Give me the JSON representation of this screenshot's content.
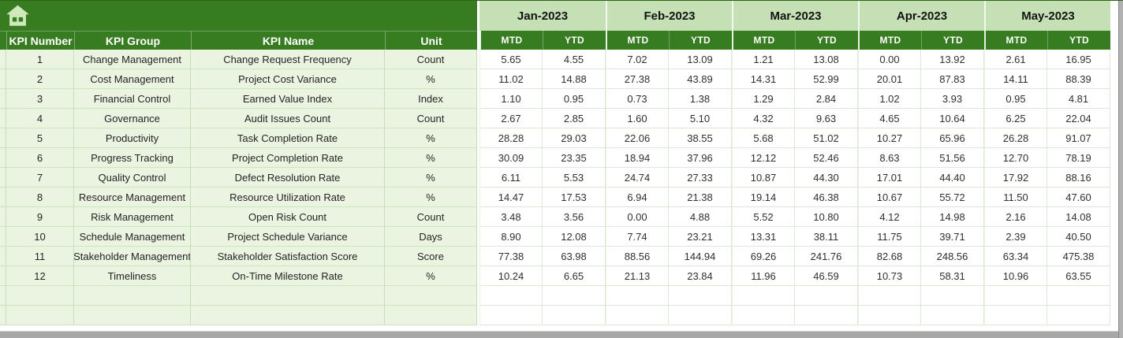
{
  "header": {
    "home_icon": "home-icon"
  },
  "colors": {
    "header_green": "#387c21",
    "month_band_green": "#c5e0b4",
    "label_cell_green": "#ebf4e1",
    "scrollbar_gray": "#a8a8a8",
    "home_icon_fill": "#cfe9bd"
  },
  "table": {
    "column_headers": [
      "KPI Number",
      "KPI Group",
      "KPI Name",
      "Unit"
    ],
    "months": [
      "Jan-2023",
      "Feb-2023",
      "Mar-2023",
      "Apr-2023",
      "May-2023"
    ],
    "period_headers": [
      "MTD",
      "YTD"
    ],
    "empty_row_count": 2,
    "rows": [
      {
        "number": "1",
        "group": "Change Management",
        "name": "Change Request Frequency",
        "unit": "Count",
        "values": [
          "5.65",
          "4.55",
          "7.02",
          "13.09",
          "1.21",
          "13.08",
          "0.00",
          "13.92",
          "2.61",
          "16.95"
        ]
      },
      {
        "number": "2",
        "group": "Cost Management",
        "name": "Project Cost Variance",
        "unit": "%",
        "values": [
          "11.02",
          "14.88",
          "27.38",
          "43.89",
          "14.31",
          "52.99",
          "20.01",
          "87.83",
          "14.11",
          "88.39"
        ]
      },
      {
        "number": "3",
        "group": "Financial Control",
        "name": "Earned Value Index",
        "unit": "Index",
        "values": [
          "1.10",
          "0.95",
          "0.73",
          "1.38",
          "1.29",
          "2.84",
          "1.02",
          "3.93",
          "0.95",
          "4.81"
        ]
      },
      {
        "number": "4",
        "group": "Governance",
        "name": "Audit Issues Count",
        "unit": "Count",
        "values": [
          "2.67",
          "2.85",
          "1.60",
          "5.10",
          "4.32",
          "9.63",
          "4.65",
          "10.64",
          "6.25",
          "22.04"
        ]
      },
      {
        "number": "5",
        "group": "Productivity",
        "name": "Task Completion Rate",
        "unit": "%",
        "values": [
          "28.28",
          "29.03",
          "22.06",
          "38.55",
          "5.68",
          "51.02",
          "10.27",
          "65.96",
          "26.28",
          "91.07"
        ]
      },
      {
        "number": "6",
        "group": "Progress Tracking",
        "name": "Project Completion Rate",
        "unit": "%",
        "values": [
          "30.09",
          "23.35",
          "18.94",
          "37.96",
          "12.12",
          "52.46",
          "8.63",
          "51.56",
          "12.70",
          "78.19"
        ]
      },
      {
        "number": "7",
        "group": "Quality Control",
        "name": "Defect Resolution Rate",
        "unit": "%",
        "values": [
          "6.11",
          "5.53",
          "24.74",
          "27.33",
          "10.87",
          "44.30",
          "17.01",
          "44.40",
          "17.92",
          "88.16"
        ]
      },
      {
        "number": "8",
        "group": "Resource Management",
        "name": "Resource Utilization Rate",
        "unit": "%",
        "values": [
          "14.47",
          "17.53",
          "6.94",
          "21.38",
          "19.14",
          "46.38",
          "10.67",
          "55.72",
          "11.50",
          "47.60"
        ]
      },
      {
        "number": "9",
        "group": "Risk Management",
        "name": "Open Risk Count",
        "unit": "Count",
        "values": [
          "3.48",
          "3.56",
          "0.00",
          "4.88",
          "5.52",
          "10.80",
          "4.12",
          "14.98",
          "2.16",
          "14.08"
        ]
      },
      {
        "number": "10",
        "group": "Schedule Management",
        "name": "Project Schedule Variance",
        "unit": "Days",
        "values": [
          "8.90",
          "12.08",
          "7.74",
          "23.21",
          "13.31",
          "38.11",
          "11.75",
          "39.71",
          "2.39",
          "40.50"
        ]
      },
      {
        "number": "11",
        "group": "Stakeholder Management",
        "name": "Stakeholder Satisfaction Score",
        "unit": "Score",
        "values": [
          "77.38",
          "63.98",
          "88.56",
          "144.94",
          "69.26",
          "241.76",
          "82.68",
          "248.56",
          "63.34",
          "475.38"
        ]
      },
      {
        "number": "12",
        "group": "Timeliness",
        "name": "On-Time Milestone Rate",
        "unit": "%",
        "values": [
          "10.24",
          "6.65",
          "21.13",
          "23.84",
          "11.96",
          "46.59",
          "10.73",
          "58.31",
          "10.96",
          "63.55"
        ]
      }
    ]
  }
}
